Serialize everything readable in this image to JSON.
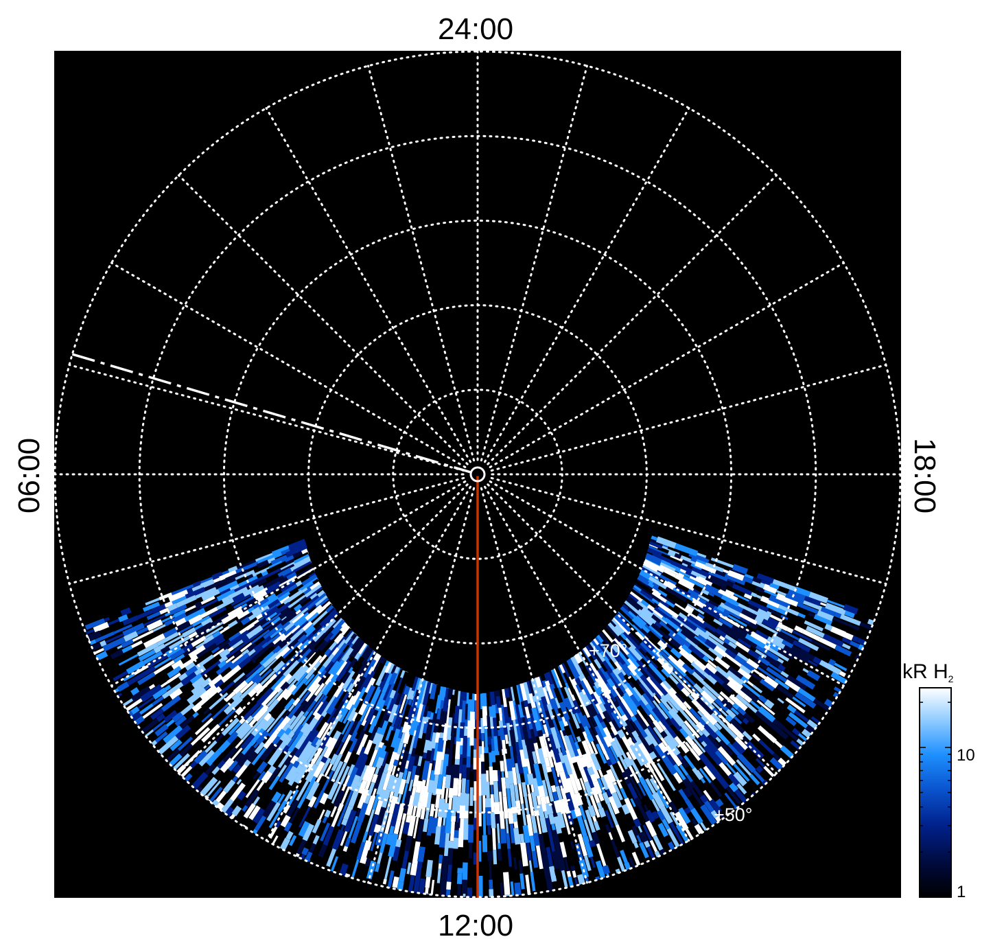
{
  "chart_data": {
    "type": "polar-projection",
    "local_time_labels": {
      "top": "24:00",
      "bottom": "12:00",
      "left": "06:00",
      "right": "18:00"
    },
    "latitude_labels": [
      "+70°",
      "+50°"
    ],
    "grid": {
      "latitude_circles_deg": [
        80,
        70,
        60,
        50,
        40
      ],
      "meridian_spacing_hours": 1,
      "style": "dotted",
      "color": "#ffffff"
    },
    "overlays": {
      "meridian_line": {
        "local_time": "12:00",
        "color": "#cc3300"
      },
      "dashed_line": {
        "local_time_hours": 4.9,
        "color": "#ffffff"
      }
    },
    "colorbar": {
      "title": "kR H",
      "title_subscript": "2",
      "scale": "log",
      "range": [
        1,
        25
      ],
      "tick_labels": [
        "1",
        "10"
      ],
      "colors": [
        "#000000",
        "#000a3c",
        "#00208a",
        "#0a55d0",
        "#1e90ff",
        "#8ccaff",
        "#ffffff"
      ]
    },
    "emission": {
      "region": "dayside",
      "lt_hours_range": [
        7.4,
        16.7
      ],
      "peak_arc_lat_deg": 52
    }
  }
}
